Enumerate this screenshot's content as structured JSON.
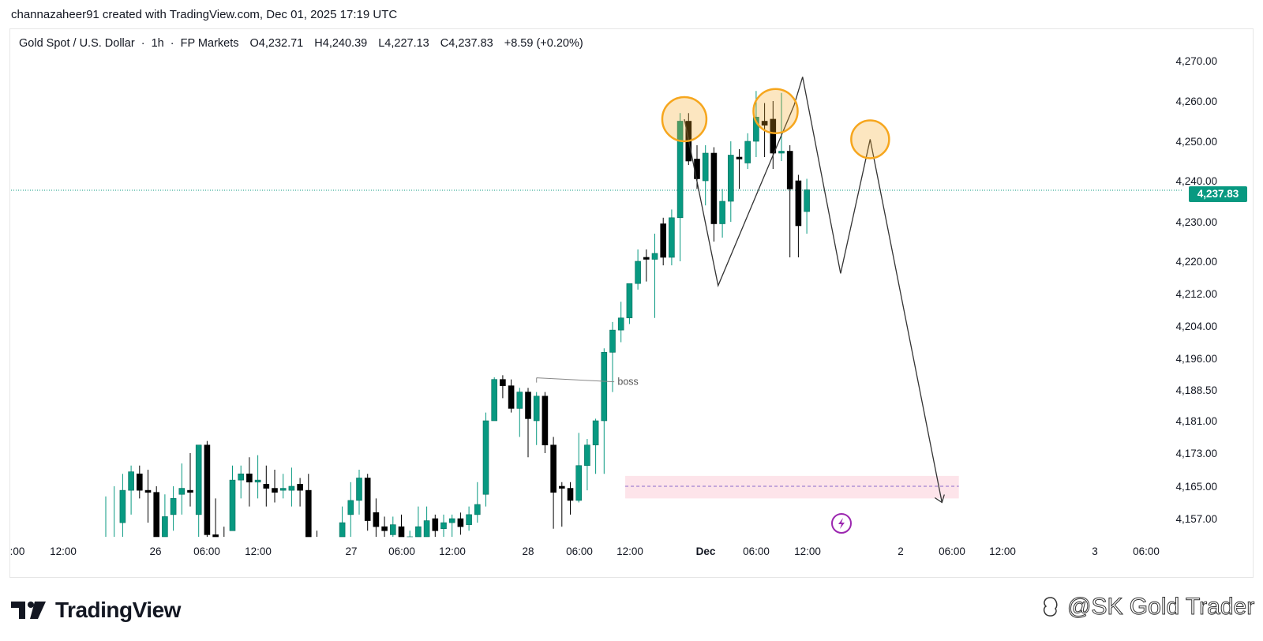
{
  "attribution": "channazaheer91 created with TradingView.com, Dec 01, 2025 17:19 UTC",
  "legend": {
    "symbol": "Gold Spot / U.S. Dollar",
    "interval": "1h",
    "broker": "FP Markets",
    "open": "O4,232.71",
    "high": "H4,240.39",
    "low": "L4,227.13",
    "close": "C4,237.83",
    "change": "+8.59 (+0.20%)"
  },
  "price_badge": "4,237.83",
  "brand": {
    "name": "TradingView"
  },
  "watermark": "@SK Gold Trader",
  "colors": {
    "up": "#089981",
    "down": "#000000",
    "highlight_circle": "#f6a61d",
    "zone": "#fde4ea",
    "zone_line": "#8a67c9",
    "current_price_line": "#089981",
    "lightning": "#9c27b0"
  },
  "chart_data": {
    "type": "candlestick",
    "title": "Gold Spot / U.S. Dollar · 1h · FP Markets",
    "interval": "1h",
    "current_price": 4237.83,
    "y_ticks": [
      "4,270.00",
      "4,260.00",
      "4,250.00",
      "4,240.00",
      "4,230.00",
      "4,220.00",
      "4,212.00",
      "4,204.00",
      "4,196.00",
      "4,188.50",
      "4,181.00",
      "4,173.00",
      "4,165.00",
      "4,157.00"
    ],
    "x_ticks": [
      ":00",
      "12:00",
      "26",
      "06:00",
      "12:00",
      "27",
      "06:00",
      "12:00",
      "28",
      "06:00",
      "12:00",
      "Dec",
      "06:00",
      "12:00",
      "2",
      "06:00",
      "12:00",
      "3",
      "06:00"
    ],
    "candles": [
      {
        "o": 4150.0,
        "h": 4162.5,
        "l": 4150.0,
        "c": 4150.5
      },
      {
        "o": 4150.0,
        "h": 4165.0,
        "l": 4150.0,
        "c": 4150.5
      },
      {
        "o": 4156.0,
        "h": 4168.0,
        "l": 4148.0,
        "c": 4164.0
      },
      {
        "o": 4164.0,
        "h": 4170.0,
        "l": 4158.0,
        "c": 4168.5
      },
      {
        "o": 4168.0,
        "h": 4170.0,
        "l": 4162.0,
        "c": 4164.0
      },
      {
        "o": 4164.0,
        "h": 4169.0,
        "l": 4156.0,
        "c": 4163.5
      },
      {
        "o": 4163.5,
        "h": 4165.0,
        "l": 4150.0,
        "c": 4152.5
      },
      {
        "o": 4152.5,
        "h": 4163.0,
        "l": 4152.0,
        "c": 4157.5
      },
      {
        "o": 4158.0,
        "h": 4165.0,
        "l": 4154.0,
        "c": 4162.0
      },
      {
        "o": 4163.0,
        "h": 4170.5,
        "l": 4158.0,
        "c": 4164.5
      },
      {
        "o": 4164.0,
        "h": 4173.0,
        "l": 4160.0,
        "c": 4163.5
      },
      {
        "o": 4158.0,
        "h": 4174.0,
        "l": 4152.0,
        "c": 4175.0
      },
      {
        "o": 4175.0,
        "h": 4176.0,
        "l": 4152.0,
        "c": 4153.0
      },
      {
        "o": 4153.0,
        "h": 4162.0,
        "l": 4150.0,
        "c": 4150.5
      },
      {
        "o": 4150.5,
        "h": 4155.0,
        "l": 4148.0,
        "c": 4149.5
      },
      {
        "o": 4154.0,
        "h": 4170.0,
        "l": 4154.0,
        "c": 4166.5
      },
      {
        "o": 4166.5,
        "h": 4170.0,
        "l": 4162.0,
        "c": 4168.0
      },
      {
        "o": 4168.0,
        "h": 4172.0,
        "l": 4160.0,
        "c": 4166.0
      },
      {
        "o": 4166.0,
        "h": 4172.5,
        "l": 4162.0,
        "c": 4166.5
      },
      {
        "o": 4165.5,
        "h": 4170.0,
        "l": 4160.0,
        "c": 4164.5
      },
      {
        "o": 4164.5,
        "h": 4169.0,
        "l": 4161.0,
        "c": 4163.5
      },
      {
        "o": 4164.0,
        "h": 4168.0,
        "l": 4162.0,
        "c": 4164.5
      },
      {
        "o": 4164.0,
        "h": 4169.5,
        "l": 4160.0,
        "c": 4165.0
      },
      {
        "o": 4165.5,
        "h": 4167.0,
        "l": 4160.0,
        "c": 4164.0
      },
      {
        "o": 4164.0,
        "h": 4168.0,
        "l": 4148.0,
        "c": 4152.0
      },
      {
        "o": 4152.0,
        "h": 4154.0,
        "l": 4148.0,
        "c": 4150.5
      },
      {
        "o": 4150.5,
        "h": 4152.0,
        "l": 4148.5,
        "c": 4149.8
      },
      {
        "o": 4150.0,
        "h": 4152.0,
        "l": 4148.0,
        "c": 4151.0
      },
      {
        "o": 4152.0,
        "h": 4160.0,
        "l": 4150.0,
        "c": 4156.0
      },
      {
        "o": 4158.0,
        "h": 4166.0,
        "l": 4150.0,
        "c": 4161.5
      },
      {
        "o": 4161.5,
        "h": 4169.0,
        "l": 4158.0,
        "c": 4167.0
      },
      {
        "o": 4167.0,
        "h": 4168.0,
        "l": 4154.0,
        "c": 4156.5
      },
      {
        "o": 4158.5,
        "h": 4162.0,
        "l": 4152.0,
        "c": 4155.0
      },
      {
        "o": 4155.0,
        "h": 4157.5,
        "l": 4150.0,
        "c": 4154.0
      },
      {
        "o": 4153.0,
        "h": 4157.5,
        "l": 4152.0,
        "c": 4155.5
      },
      {
        "o": 4155.0,
        "h": 4158.0,
        "l": 4150.0,
        "c": 4151.5
      },
      {
        "o": 4151.0,
        "h": 4154.0,
        "l": 4149.0,
        "c": 4152.5
      },
      {
        "o": 4152.0,
        "h": 4160.0,
        "l": 4150.0,
        "c": 4155.0
      },
      {
        "o": 4152.5,
        "h": 4160.0,
        "l": 4150.0,
        "c": 4156.5
      },
      {
        "o": 4157.0,
        "h": 4158.0,
        "l": 4149.0,
        "c": 4154.0
      },
      {
        "o": 4154.5,
        "h": 4158.0,
        "l": 4151.0,
        "c": 4156.0
      },
      {
        "o": 4156.0,
        "h": 4158.0,
        "l": 4152.0,
        "c": 4157.0
      },
      {
        "o": 4157.0,
        "h": 4158.5,
        "l": 4153.0,
        "c": 4155.0
      },
      {
        "o": 4155.5,
        "h": 4160.0,
        "l": 4154.0,
        "c": 4158.0
      },
      {
        "o": 4158.0,
        "h": 4166.0,
        "l": 4156.0,
        "c": 4160.5
      },
      {
        "o": 4163.0,
        "h": 4183.0,
        "l": 4160.0,
        "c": 4181.0
      },
      {
        "o": 4181.0,
        "h": 4191.5,
        "l": 4181.0,
        "c": 4191.0
      },
      {
        "o": 4191.0,
        "h": 4192.0,
        "l": 4186.5,
        "c": 4189.5
      },
      {
        "o": 4189.5,
        "h": 4191.0,
        "l": 4183.0,
        "c": 4184.0
      },
      {
        "o": 4184.0,
        "h": 4189.0,
        "l": 4177.0,
        "c": 4188.0
      },
      {
        "o": 4188.0,
        "h": 4189.0,
        "l": 4172.0,
        "c": 4181.5
      },
      {
        "o": 4181.0,
        "h": 4188.0,
        "l": 4175.0,
        "c": 4187.0
      },
      {
        "o": 4187.0,
        "h": 4188.0,
        "l": 4173.0,
        "c": 4175.0
      },
      {
        "o": 4175.0,
        "h": 4177.0,
        "l": 4154.5,
        "c": 4163.5
      },
      {
        "o": 4165.0,
        "h": 4166.0,
        "l": 4155.0,
        "c": 4164.5
      },
      {
        "o": 4164.5,
        "h": 4166.0,
        "l": 4158.0,
        "c": 4161.5
      },
      {
        "o": 4161.5,
        "h": 4178.0,
        "l": 4161.0,
        "c": 4170.0
      },
      {
        "o": 4170.0,
        "h": 4176.5,
        "l": 4164.0,
        "c": 4175.0
      },
      {
        "o": 4175.0,
        "h": 4181.5,
        "l": 4168.0,
        "c": 4181.0
      },
      {
        "o": 4181.0,
        "h": 4198.5,
        "l": 4168.0,
        "c": 4197.5
      },
      {
        "o": 4197.5,
        "h": 4205.0,
        "l": 4188.0,
        "c": 4203.0
      },
      {
        "o": 4203.0,
        "h": 4210.0,
        "l": 4200.0,
        "c": 4206.0
      },
      {
        "o": 4206.0,
        "h": 4213.5,
        "l": 4204.5,
        "c": 4214.5
      },
      {
        "o": 4214.5,
        "h": 4223.0,
        "l": 4213.0,
        "c": 4220.0
      },
      {
        "o": 4221.0,
        "h": 4223.0,
        "l": 4215.0,
        "c": 4220.5
      },
      {
        "o": 4220.5,
        "h": 4227.0,
        "l": 4206.0,
        "c": 4222.0
      },
      {
        "o": 4229.5,
        "h": 4231.0,
        "l": 4219.0,
        "c": 4221.0
      },
      {
        "o": 4221.0,
        "h": 4233.0,
        "l": 4219.0,
        "c": 4231.0
      },
      {
        "o": 4231.0,
        "h": 4257.0,
        "l": 4220.0,
        "c": 4255.0
      },
      {
        "o": 4255.0,
        "h": 4257.0,
        "l": 4244.0,
        "c": 4245.0
      },
      {
        "o": 4245.5,
        "h": 4249.0,
        "l": 4238.0,
        "c": 4240.5
      },
      {
        "o": 4240.0,
        "h": 4249.0,
        "l": 4234.0,
        "c": 4247.0
      },
      {
        "o": 4247.0,
        "h": 4248.5,
        "l": 4225.0,
        "c": 4229.5
      },
      {
        "o": 4229.5,
        "h": 4238.0,
        "l": 4226.0,
        "c": 4235.0
      },
      {
        "o": 4235.0,
        "h": 4250.0,
        "l": 4230.0,
        "c": 4246.5
      },
      {
        "o": 4246.0,
        "h": 4248.0,
        "l": 4238.0,
        "c": 4245.5
      },
      {
        "o": 4244.5,
        "h": 4252.0,
        "l": 4243.0,
        "c": 4250.0
      },
      {
        "o": 4250.0,
        "h": 4262.5,
        "l": 4246.0,
        "c": 4256.0
      },
      {
        "o": 4255.0,
        "h": 4259.5,
        "l": 4246.0,
        "c": 4254.0
      },
      {
        "o": 4255.5,
        "h": 4260.0,
        "l": 4243.0,
        "c": 4247.0
      },
      {
        "o": 4247.0,
        "h": 4262.0,
        "l": 4245.0,
        "c": 4247.5
      },
      {
        "o": 4247.5,
        "h": 4249.0,
        "l": 4221.0,
        "c": 4238.0
      },
      {
        "o": 4240.0,
        "h": 4241.5,
        "l": 4221.0,
        "c": 4229.0
      },
      {
        "o": 4232.5,
        "h": 4240.5,
        "l": 4227.0,
        "c": 4237.8
      }
    ],
    "annotations": {
      "boss_label": "boss",
      "boss_level": 4191.0,
      "demand_zone": {
        "top": 4167.5,
        "bottom": 4162.0,
        "mid": 4165.0
      },
      "projection_path": [
        {
          "candle": 68.5,
          "price": 4255.5
        },
        {
          "candle": 72.5,
          "price": 4214.0
        },
        {
          "candle": 81.5,
          "price": 4259.0
        },
        {
          "candle": 82.5,
          "price": 4266.0
        },
        {
          "candle": 87.0,
          "price": 4217.0
        },
        {
          "candle": 90.5,
          "price": 4250.5
        },
        {
          "candle": 99.0,
          "price": 4161.0
        }
      ],
      "circles": [
        {
          "candle": 68.5,
          "price": 4255.5
        },
        {
          "candle": 79.3,
          "price": 4257.5
        },
        {
          "candle": 90.5,
          "price": 4250.5
        }
      ]
    }
  }
}
